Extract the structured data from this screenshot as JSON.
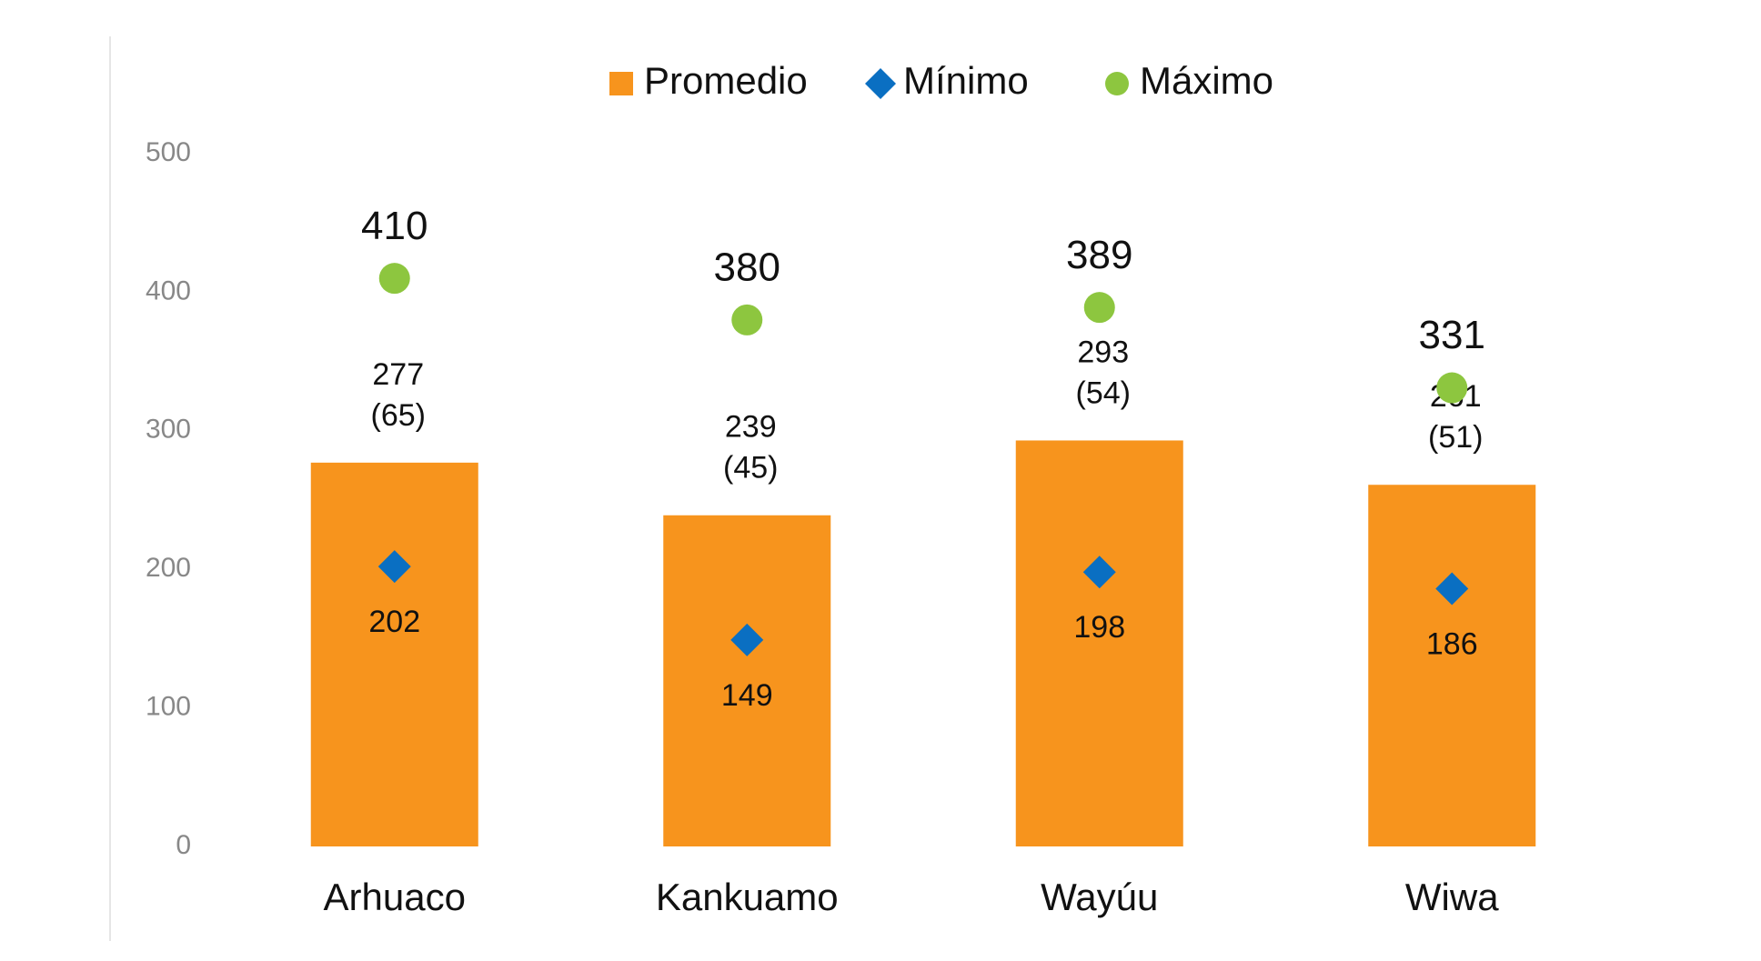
{
  "chart_data": {
    "type": "bar",
    "categories": [
      "Arhuaco",
      "Kankuamo",
      "Wayúu",
      "Wiwa"
    ],
    "series": [
      {
        "name": "Promedio",
        "type": "bar",
        "color": "#f7941d",
        "values": [
          277,
          239,
          293,
          261
        ],
        "error_labels": [
          "(65)",
          "(45)",
          "(54)",
          "(51)"
        ]
      },
      {
        "name": "Mínimo",
        "type": "diamond",
        "color": "#0a6fc2",
        "values": [
          202,
          149,
          198,
          186
        ]
      },
      {
        "name": "Máximo",
        "type": "circle",
        "color": "#8dc63f",
        "values": [
          410,
          380,
          389,
          331
        ]
      }
    ],
    "ylim": [
      0,
      500
    ],
    "yticks": [
      0,
      100,
      200,
      300,
      400,
      500
    ],
    "grid": false,
    "legend": "top"
  }
}
